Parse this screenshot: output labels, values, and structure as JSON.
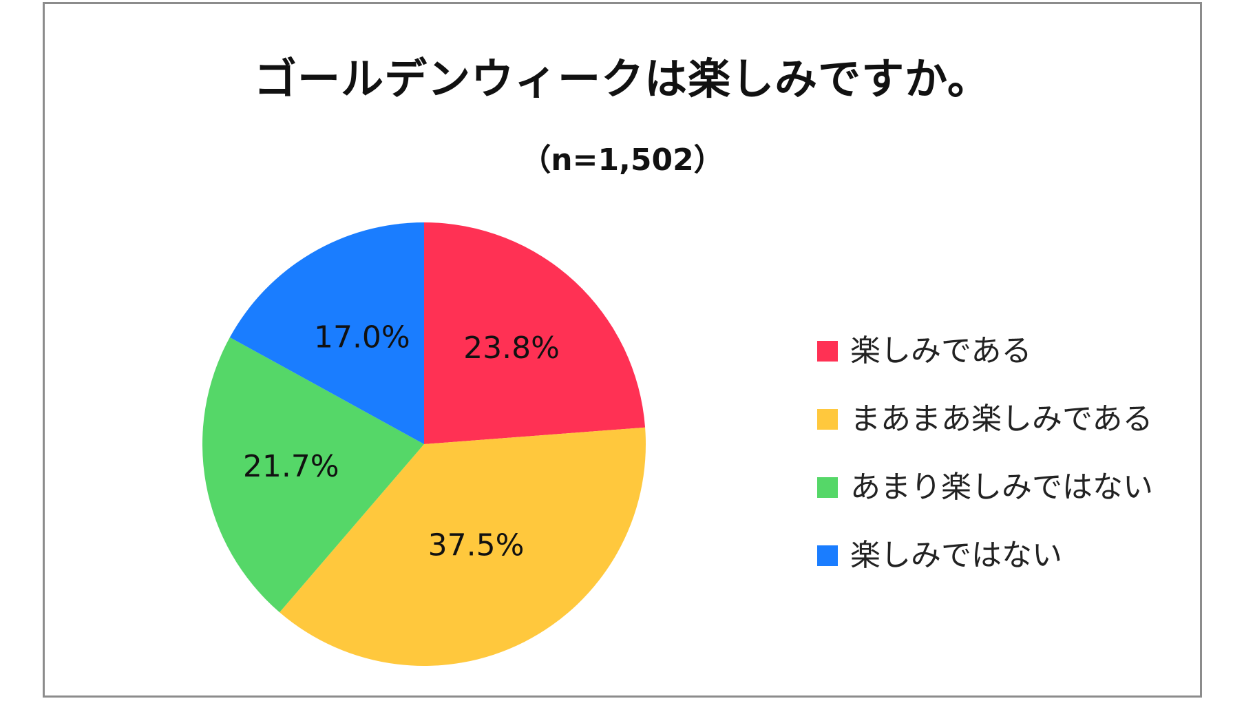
{
  "chart_data": {
    "type": "pie",
    "title": "ゴールデンウィークは楽しみですか。",
    "subtitle": "（n=1,502）",
    "unit": "%",
    "legend_position": "right",
    "slices": [
      {
        "name": "楽しみである",
        "value": 23.8,
        "label": "23.8%",
        "color": "#ff3154"
      },
      {
        "name": "まあまあ楽しみである",
        "value": 37.5,
        "label": "37.5%",
        "color": "#ffc83d"
      },
      {
        "name": "あまり楽しみではない",
        "value": 21.7,
        "label": "21.7%",
        "color": "#55d768"
      },
      {
        "name": "楽しみではない",
        "value": 17.0,
        "label": "17.0%",
        "color": "#1a7dff"
      }
    ]
  }
}
